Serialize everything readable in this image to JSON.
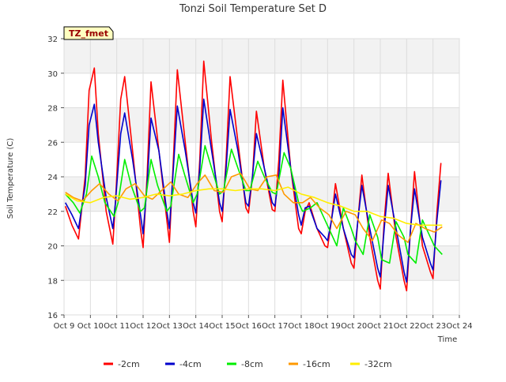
{
  "chart_data": {
    "type": "line",
    "title": "Tonzi Soil Temperature Set D",
    "xlabel": "Time",
    "ylabel": "Soil Temperature (C)",
    "badge": "TZ_fmet",
    "ylim": [
      16,
      32
    ],
    "yticks": [
      16,
      18,
      20,
      22,
      24,
      26,
      28,
      30,
      32
    ],
    "xlim": [
      9,
      24
    ],
    "xticks": [
      9,
      10,
      11,
      12,
      13,
      14,
      15,
      16,
      17,
      18,
      19,
      20,
      21,
      22,
      23,
      24
    ],
    "xtick_labels": [
      "Oct 9",
      "Oct 10",
      "Oct 11",
      "Oct 12",
      "Oct 13",
      "Oct 14",
      "Oct 15",
      "Oct 16",
      "Oct 17",
      "Oct 18",
      "Oct 19",
      "Oct 20",
      "Oct 21",
      "Oct 22",
      "Oct 23",
      "Oct 24"
    ],
    "grid": true,
    "legend_position": "bottom",
    "series": [
      {
        "name": "-2cm",
        "color": "#ff0000",
        "x": [
          9.05,
          9.3,
          9.55,
          9.8,
          9.95,
          10.15,
          10.3,
          10.6,
          10.85,
          10.95,
          11.15,
          11.3,
          11.6,
          11.9,
          12.0,
          12.15,
          12.3,
          12.6,
          12.9,
          13.0,
          13.15,
          13.3,
          13.6,
          13.9,
          14.0,
          14.15,
          14.3,
          14.6,
          14.9,
          15.0,
          15.15,
          15.3,
          15.6,
          15.9,
          16.0,
          16.15,
          16.3,
          16.6,
          16.9,
          17.0,
          17.15,
          17.3,
          17.6,
          17.9,
          18.0,
          18.15,
          18.3,
          18.6,
          18.9,
          19.0,
          19.15,
          19.3,
          19.6,
          19.9,
          20.0,
          20.15,
          20.3,
          20.6,
          20.9,
          21.0,
          21.15,
          21.3,
          21.6,
          21.9,
          22.0,
          22.15,
          22.3,
          22.6,
          22.9,
          23.0,
          23.15,
          23.3
        ],
        "y": [
          22.3,
          21.2,
          20.4,
          24.0,
          29.0,
          30.3,
          26.5,
          22.0,
          20.1,
          22.5,
          28.5,
          29.8,
          25.5,
          21.0,
          19.9,
          24.0,
          29.5,
          25.5,
          21.5,
          20.2,
          25.0,
          30.2,
          26.0,
          22.0,
          21.1,
          25.0,
          30.7,
          26.0,
          22.0,
          21.4,
          25.0,
          29.8,
          26.0,
          22.2,
          21.9,
          24.0,
          27.8,
          24.5,
          22.1,
          22.0,
          25.0,
          29.6,
          24.5,
          21.0,
          20.7,
          22.0,
          22.5,
          21.0,
          20.0,
          19.9,
          21.5,
          23.6,
          21.0,
          19.0,
          18.7,
          21.5,
          24.1,
          20.5,
          18.0,
          17.5,
          21.5,
          24.2,
          20.5,
          18.0,
          17.4,
          21.0,
          24.3,
          20.0,
          18.5,
          18.1,
          22.0,
          24.8
        ]
      },
      {
        "name": "-4cm",
        "color": "#0000cc",
        "x": [
          9.05,
          9.3,
          9.55,
          9.8,
          9.95,
          10.15,
          10.3,
          10.6,
          10.85,
          10.95,
          11.15,
          11.3,
          11.6,
          11.9,
          12.0,
          12.15,
          12.3,
          12.6,
          12.9,
          13.0,
          13.15,
          13.3,
          13.6,
          13.9,
          14.0,
          14.15,
          14.3,
          14.6,
          14.9,
          15.0,
          15.15,
          15.3,
          15.6,
          15.9,
          16.0,
          16.15,
          16.3,
          16.6,
          16.9,
          17.0,
          17.15,
          17.3,
          17.6,
          17.9,
          18.0,
          18.15,
          18.3,
          18.6,
          18.9,
          19.0,
          19.15,
          19.3,
          19.6,
          19.9,
          20.0,
          20.15,
          20.3,
          20.6,
          20.9,
          21.0,
          21.15,
          21.3,
          21.6,
          21.9,
          22.0,
          22.15,
          22.3,
          22.6,
          22.9,
          23.0,
          23.15,
          23.3
        ],
        "y": [
          22.5,
          21.8,
          21.0,
          23.5,
          27.0,
          28.2,
          26.0,
          22.8,
          21.0,
          22.5,
          26.5,
          27.7,
          25.0,
          21.8,
          20.7,
          23.5,
          27.4,
          25.5,
          22.0,
          21.0,
          24.5,
          28.1,
          25.5,
          22.5,
          21.9,
          24.5,
          28.5,
          25.5,
          22.5,
          22.0,
          24.5,
          27.9,
          25.5,
          22.5,
          22.3,
          24.0,
          26.5,
          24.5,
          22.5,
          22.3,
          24.0,
          28.0,
          24.5,
          21.8,
          21.2,
          22.2,
          22.3,
          21.0,
          20.5,
          20.3,
          21.5,
          23.0,
          21.0,
          19.5,
          19.3,
          21.5,
          23.5,
          21.0,
          18.7,
          18.2,
          21.0,
          23.5,
          21.0,
          18.5,
          17.9,
          21.0,
          23.3,
          20.5,
          19.0,
          18.6,
          21.5,
          23.8
        ]
      },
      {
        "name": "-8cm",
        "color": "#00ee00",
        "x": [
          9.05,
          9.35,
          9.6,
          9.85,
          10.05,
          10.3,
          10.55,
          10.9,
          11.05,
          11.3,
          11.55,
          11.9,
          12.05,
          12.3,
          12.55,
          12.9,
          13.05,
          13.35,
          13.6,
          13.9,
          14.05,
          14.35,
          14.6,
          14.9,
          15.05,
          15.35,
          15.6,
          15.9,
          16.05,
          16.35,
          16.6,
          16.9,
          17.05,
          17.35,
          17.6,
          17.9,
          18.05,
          18.35,
          18.6,
          18.9,
          19.05,
          19.35,
          19.6,
          19.9,
          20.05,
          20.35,
          20.6,
          20.9,
          21.05,
          21.35,
          21.6,
          21.9,
          22.05,
          22.35,
          22.6,
          22.9,
          23.05,
          23.35
        ],
        "y": [
          23.0,
          22.5,
          21.9,
          23.0,
          25.2,
          24.0,
          22.5,
          21.7,
          22.5,
          25.0,
          23.5,
          22.0,
          22.2,
          25.0,
          23.5,
          22.0,
          22.3,
          25.3,
          24.0,
          22.5,
          23.0,
          25.8,
          24.5,
          23.0,
          23.2,
          25.6,
          24.5,
          23.2,
          23.2,
          24.9,
          24.0,
          23.1,
          23.0,
          25.4,
          24.5,
          22.5,
          22.0,
          22.2,
          22.5,
          21.5,
          21.0,
          20.0,
          22.2,
          21.0,
          20.3,
          19.5,
          21.8,
          20.5,
          19.2,
          19.0,
          21.4,
          20.5,
          19.5,
          19.0,
          21.5,
          20.5,
          20.0,
          19.5
        ]
      },
      {
        "name": "-16cm",
        "color": "#ff9900",
        "x": [
          9.05,
          9.35,
          9.7,
          10.05,
          10.35,
          10.7,
          11.05,
          11.35,
          11.7,
          12.05,
          12.35,
          12.7,
          13.05,
          13.35,
          13.7,
          14.05,
          14.35,
          14.7,
          15.05,
          15.35,
          15.7,
          16.05,
          16.35,
          16.7,
          17.05,
          17.35,
          17.7,
          18.05,
          18.35,
          18.7,
          19.05,
          19.35,
          19.7,
          20.05,
          20.35,
          20.7,
          21.05,
          21.35,
          21.7,
          22.05,
          22.35,
          22.7,
          23.05,
          23.35
        ],
        "y": [
          23.1,
          22.8,
          22.6,
          23.2,
          23.6,
          23.0,
          22.6,
          23.3,
          23.6,
          22.9,
          22.7,
          23.2,
          23.7,
          23.0,
          22.8,
          23.6,
          24.1,
          23.2,
          23.1,
          24.0,
          24.2,
          23.3,
          23.2,
          24.0,
          24.1,
          23.0,
          22.5,
          22.5,
          22.8,
          22.2,
          21.8,
          21.0,
          22.0,
          21.8,
          21.0,
          20.3,
          21.5,
          21.3,
          20.6,
          20.2,
          21.3,
          21.0,
          20.8,
          21.1
        ]
      },
      {
        "name": "-32cm",
        "color": "#ffee00",
        "x": [
          9.05,
          9.5,
          10.0,
          10.5,
          11.0,
          11.5,
          12.0,
          12.5,
          13.0,
          13.5,
          14.0,
          14.5,
          15.0,
          15.5,
          16.0,
          16.5,
          17.0,
          17.5,
          18.0,
          18.5,
          19.0,
          19.5,
          20.0,
          20.5,
          21.0,
          21.5,
          22.0,
          22.5,
          23.0,
          23.35
        ],
        "y": [
          23.0,
          22.6,
          22.5,
          22.8,
          22.9,
          22.7,
          22.8,
          23.0,
          22.9,
          23.0,
          23.2,
          23.3,
          23.3,
          23.2,
          23.3,
          23.3,
          23.2,
          23.4,
          23.0,
          22.8,
          22.5,
          22.3,
          22.0,
          22.0,
          21.7,
          21.6,
          21.3,
          21.2,
          21.2,
          21.2
        ]
      }
    ]
  }
}
